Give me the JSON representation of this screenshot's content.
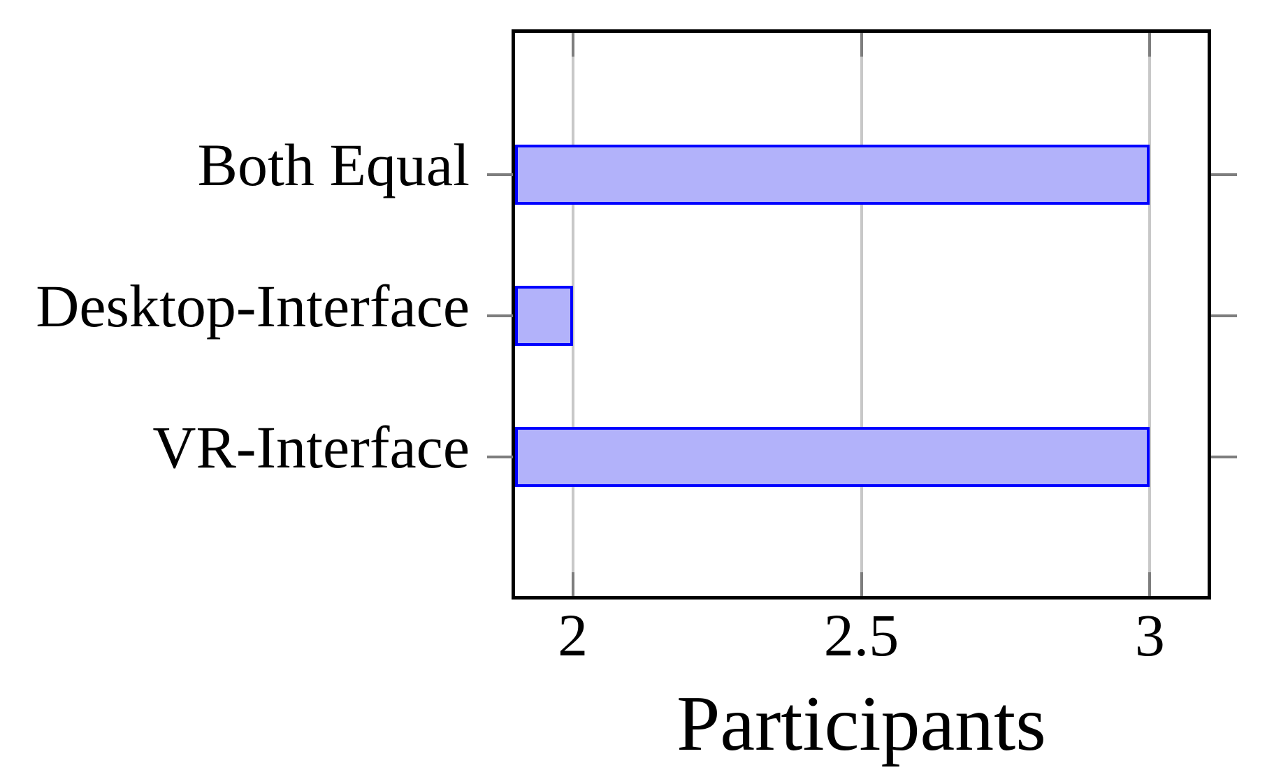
{
  "chart_data": {
    "type": "bar",
    "orientation": "horizontal",
    "title": "",
    "xlabel": "Participants",
    "ylabel": "",
    "categories": [
      "Both Equal",
      "Desktop-Interface",
      "VR-Interface"
    ],
    "values": [
      3,
      2,
      3
    ],
    "x_ticks": [
      {
        "label": "2",
        "value": 2
      },
      {
        "label": "2.5",
        "value": 2.5
      },
      {
        "label": "3",
        "value": 3
      }
    ],
    "xlim": [
      1.9,
      3.1
    ],
    "grid": "vertical-at-x-ticks",
    "legend": "none",
    "colors": {
      "bar_fill": "#B2B2FA",
      "bar_border": "#0000FF",
      "gridline": "#C8C8C8",
      "tick_mark": "#7E7E7E",
      "axis_border": "#000000",
      "text": "#000000",
      "background": "#FFFFFF"
    }
  }
}
